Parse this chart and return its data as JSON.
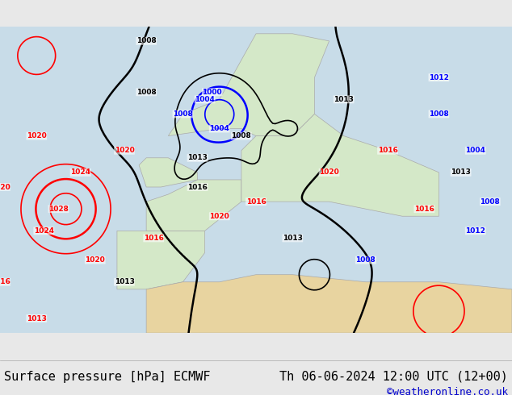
{
  "title_left": "Surface pressure [hPa] ECMWF",
  "title_right": "Th 06-06-2024 12:00 UTC (12+00)",
  "credit": "©weatheronline.co.uk",
  "bg_color": "#e8e8e8",
  "map_bg": "#d4e8c8",
  "sea_color": "#c8dce8",
  "land_color": "#d4e8c8",
  "bottom_bar_color": "#f0f0f0",
  "text_color": "#000000",
  "credit_color": "#0000cc",
  "title_fontsize": 11,
  "credit_fontsize": 9,
  "figsize": [
    6.34,
    4.9
  ],
  "dpi": 100
}
